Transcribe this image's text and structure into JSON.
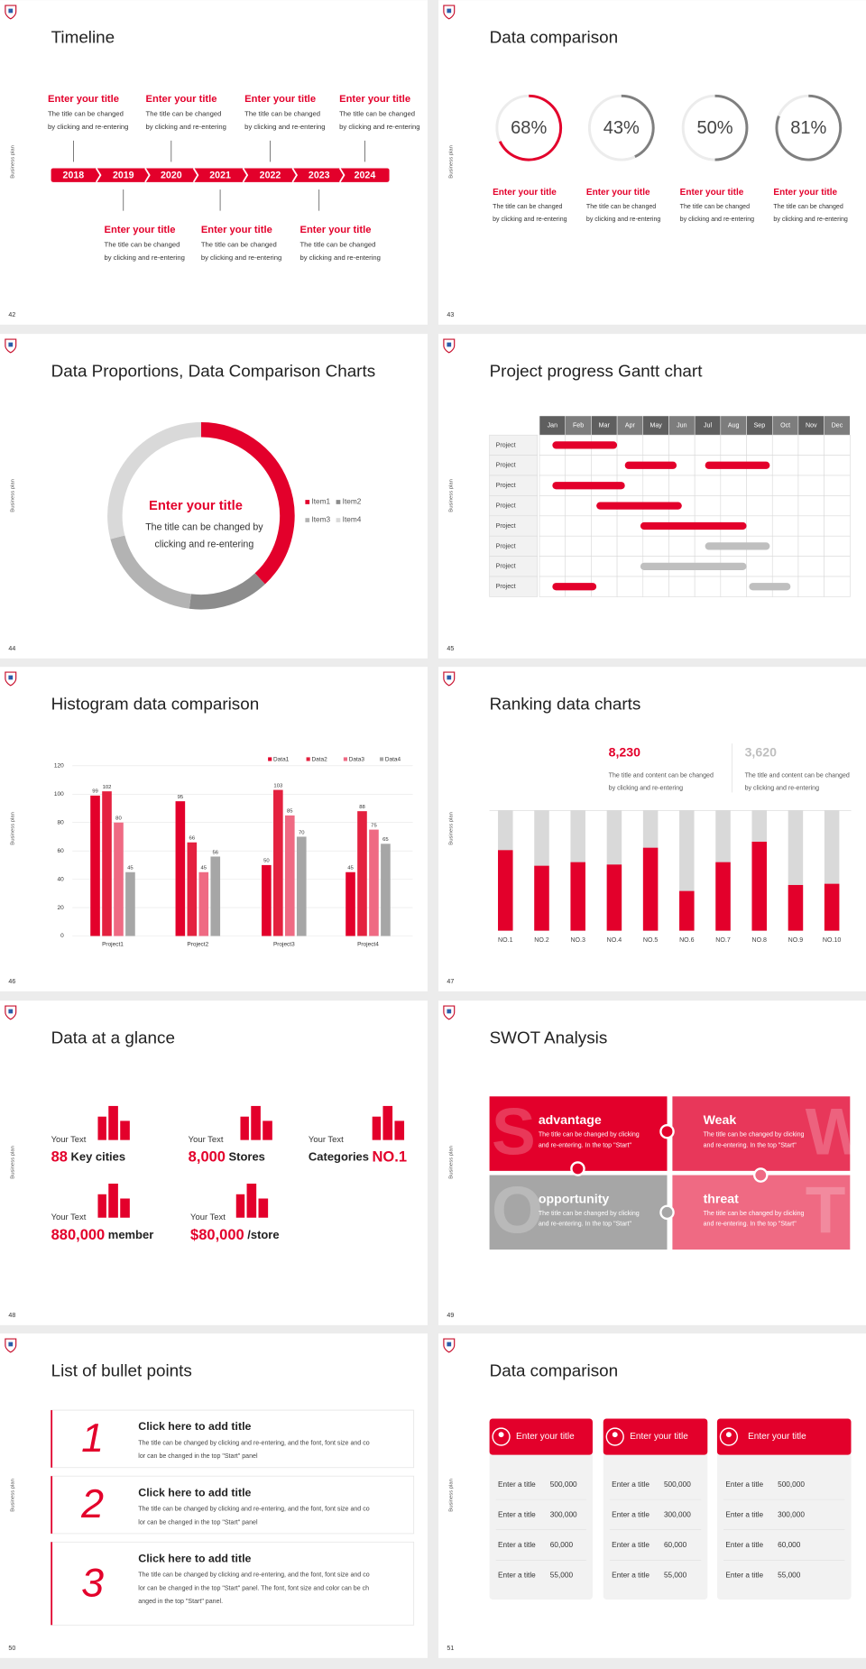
{
  "sidebar": "Business plan",
  "timeline": {
    "page": "42",
    "title": "Timeline",
    "years": [
      "2018",
      "2019",
      "2020",
      "2021",
      "2022",
      "2023",
      "2024"
    ],
    "items": [
      {
        "title": "Enter your title",
        "text": [
          "The title can be changed",
          "by clicking and re-entering"
        ]
      },
      {
        "title": "Enter your title",
        "text": [
          "The title can be changed",
          "by clicking and re-entering"
        ]
      },
      {
        "title": "Enter your title",
        "text": [
          "The title can be changed",
          "by clicking and re-entering"
        ]
      },
      {
        "title": "Enter your title",
        "text": [
          "The title can be changed",
          "by clicking and re-entering"
        ]
      },
      {
        "title": "Enter your title",
        "text": [
          "The title can be changed",
          "by clicking and re-entering"
        ]
      },
      {
        "title": "Enter your title",
        "text": [
          "The title can be changed",
          "by clicking and re-entering"
        ]
      },
      {
        "title": "Enter your title",
        "text": [
          "The title can be changed",
          "by clicking and re-entering"
        ]
      }
    ]
  },
  "chart_data": [
    {
      "type": "ring",
      "page": "43",
      "title": "Data comparison",
      "values": [
        68,
        43,
        50,
        81
      ],
      "value_labels": [
        "68%",
        "43%",
        "50%",
        "81%"
      ],
      "colors": [
        "#e3002b",
        "#7f7f7f",
        "#7f7f7f",
        "#7f7f7f"
      ],
      "captions": [
        {
          "title": "Enter your title",
          "text": [
            "The title can be changed",
            "by clicking and re-entering"
          ]
        },
        {
          "title": "Enter your title",
          "text": [
            "The title can be changed",
            "by clicking and re-entering"
          ]
        },
        {
          "title": "Enter your title",
          "text": [
            "The title can be changed",
            "by clicking and re-entering"
          ]
        },
        {
          "title": "Enter your title",
          "text": [
            "The title can be changed",
            "by clicking and re-entering"
          ]
        }
      ]
    },
    {
      "type": "donut",
      "page": "44",
      "title": "Data Proportions, Data Comparison Charts",
      "categories": [
        "Item1",
        "Item2",
        "Item3",
        "Item4"
      ],
      "values": [
        38,
        14,
        19,
        29
      ],
      "colors": [
        "#e3002b",
        "#8c8c8c",
        "#b3b3b3",
        "#d9d9d9"
      ],
      "center_title": "Enter your title",
      "center_text": [
        "The title can be changed by",
        "clicking and re-entering"
      ]
    },
    {
      "type": "gantt",
      "page": "45",
      "title": "Project progress Gantt chart",
      "months": [
        "Jan",
        "Feb",
        "Mar",
        "Apr",
        "May",
        "Jun",
        "Jul",
        "Aug",
        "Sep",
        "Oct",
        "Nov",
        "Dec"
      ],
      "rows": [
        {
          "label": "Project",
          "bars": [
            {
              "start": 0.5,
              "end": 3,
              "color": "#e3002b"
            }
          ]
        },
        {
          "label": "Project",
          "bars": [
            {
              "start": 3.3,
              "end": 5.3,
              "color": "#e3002b"
            },
            {
              "start": 6.4,
              "end": 8.9,
              "color": "#e3002b"
            }
          ]
        },
        {
          "label": "Project",
          "bars": [
            {
              "start": 0.5,
              "end": 3.3,
              "color": "#e3002b"
            }
          ]
        },
        {
          "label": "Project",
          "bars": [
            {
              "start": 2.2,
              "end": 5.5,
              "color": "#e3002b"
            }
          ]
        },
        {
          "label": "Project",
          "bars": [
            {
              "start": 3.9,
              "end": 8,
              "color": "#e3002b"
            }
          ]
        },
        {
          "label": "Project",
          "bars": [
            {
              "start": 6.4,
              "end": 8.9,
              "color": "#bfbfbf"
            }
          ]
        },
        {
          "label": "Project",
          "bars": [
            {
              "start": 3.9,
              "end": 8,
              "color": "#bfbfbf"
            }
          ]
        },
        {
          "label": "Project",
          "bars": [
            {
              "start": 0.5,
              "end": 2.2,
              "color": "#e3002b"
            },
            {
              "start": 8.1,
              "end": 9.7,
              "color": "#bfbfbf"
            }
          ]
        }
      ]
    },
    {
      "type": "grouped_bar",
      "page": "46",
      "title": "Histogram data comparison",
      "categories": [
        "Project1",
        "Project2",
        "Project3",
        "Project4"
      ],
      "series": [
        {
          "name": "Data1",
          "color": "#e3002b",
          "values": [
            99,
            95,
            50,
            45
          ]
        },
        {
          "name": "Data2",
          "color": "#e4213f",
          "values": [
            102,
            66,
            103,
            88
          ]
        },
        {
          "name": "Data3",
          "color": "#ef6a83",
          "values": [
            80,
            45,
            85,
            75
          ]
        },
        {
          "name": "Data4",
          "color": "#a6a6a6",
          "values": [
            45,
            56,
            70,
            65
          ]
        }
      ],
      "ylim": [
        0,
        120
      ],
      "yticks": [
        0,
        20,
        40,
        60,
        80,
        100,
        120
      ],
      "grid": true
    },
    {
      "type": "rank_bar",
      "page": "47",
      "title": "Ranking data charts",
      "categories": [
        "NO.1",
        "NO.2",
        "NO.3",
        "NO.4",
        "NO.5",
        "NO.6",
        "NO.7",
        "NO.8",
        "NO.9",
        "NO.10"
      ],
      "values": [
        67,
        54,
        57,
        55,
        69,
        33,
        57,
        74,
        38,
        39
      ],
      "ylim": [
        0,
        100
      ],
      "color": "#e3002b",
      "track_color": "#d9d9d9",
      "stats": [
        {
          "value": "8,230",
          "color": "#e3002b",
          "text": [
            "The title and content can be changed",
            "by clicking and re-entering"
          ]
        },
        {
          "value": "3,620",
          "color": "#bfbfbf",
          "text": [
            "The title and content can be changed",
            "by clicking and re-entering"
          ]
        }
      ]
    }
  ],
  "glance": {
    "page": "48",
    "title": "Data at a glance",
    "items": [
      {
        "label": "Your Text",
        "value": "88",
        "unit": "Key cities"
      },
      {
        "label": "Your Text",
        "value": "8,000",
        "unit": "Stores"
      },
      {
        "label": "Your Text",
        "prefix": "Categories",
        "value": "NO.1"
      },
      {
        "label": "Your Text",
        "value": "880,000",
        "unit": "member"
      },
      {
        "label": "Your Text",
        "value": "$80,000",
        "unit": "/store"
      }
    ]
  },
  "swot": {
    "page": "49",
    "title": "SWOT Analysis",
    "quadrants": [
      {
        "letter": "S",
        "title": "advantage",
        "text": [
          "The title can be changed by clicking",
          "and re-entering. In the top \"Start\""
        ]
      },
      {
        "letter": "W",
        "title": "Weak",
        "text": [
          "The title can be changed by clicking",
          "and re-entering. In the top \"Start\""
        ]
      },
      {
        "letter": "O",
        "title": "opportunity",
        "text": [
          "The title can be changed by clicking",
          "and re-entering. In the top \"Start\""
        ]
      },
      {
        "letter": "T",
        "title": "threat",
        "text": [
          "The title can be changed by clicking",
          "and re-entering. In the top \"Start\""
        ]
      }
    ]
  },
  "bullets": {
    "page": "50",
    "title": "List of bullet points",
    "items": [
      {
        "number": "1",
        "title": "Click here to add title",
        "text": [
          "The title can be changed by clicking and re-entering, and the font, font size and co",
          "lor can be changed in the top \"Start\" panel"
        ]
      },
      {
        "number": "2",
        "title": "Click here to add title",
        "text": [
          "The title can be changed by clicking and re-entering, and the font, font size and co",
          "lor can be changed in the top \"Start\" panel"
        ]
      },
      {
        "number": "3",
        "title": "Click here to add title",
        "text": [
          "The title can be changed by clicking and re-entering, and the font, font size and co",
          "lor can be changed in the top \"Start\" panel. The font, font size and color can be ch",
          "anged in the top \"Start\" panel."
        ]
      }
    ]
  },
  "tables": {
    "page": "51",
    "title": "Data comparison",
    "cards": [
      {
        "header": "Enter your title",
        "rows": [
          [
            "Enter a title",
            "500,000"
          ],
          [
            "Enter a title",
            "300,000"
          ],
          [
            "Enter a title",
            "60,000"
          ],
          [
            "Enter a title",
            "55,000"
          ]
        ]
      },
      {
        "header": "Enter your title",
        "rows": [
          [
            "Enter a title",
            "500,000"
          ],
          [
            "Enter a title",
            "300,000"
          ],
          [
            "Enter a title",
            "60,000"
          ],
          [
            "Enter a title",
            "55,000"
          ]
        ]
      },
      {
        "header": "Enter your title",
        "rows": [
          [
            "Enter a title",
            "500,000"
          ],
          [
            "Enter a title",
            "300,000"
          ],
          [
            "Enter a title",
            "60,000"
          ],
          [
            "Enter a title",
            "55,000"
          ]
        ]
      }
    ]
  }
}
